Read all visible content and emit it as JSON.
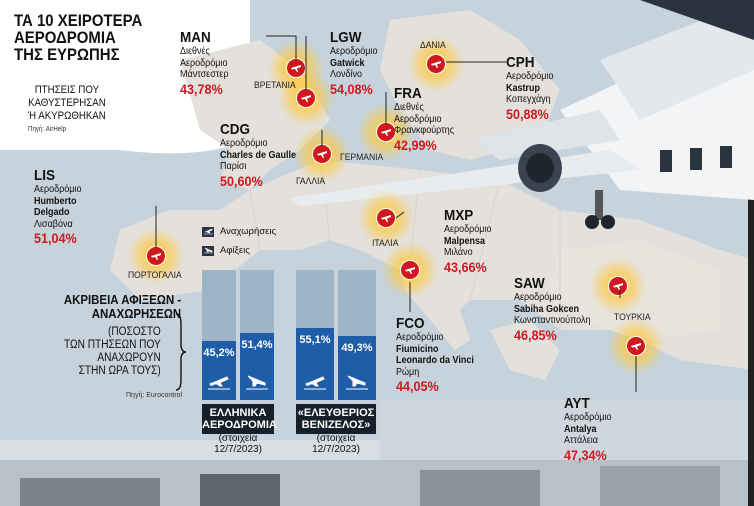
{
  "headline": {
    "lines": [
      "ΤΑ 10 ΧΕΙΡΟΤΕΡΑ",
      "ΑΕΡΟΔΡΟΜΙΑ",
      "ΤΗΣ ΕΥΡΩΠΗΣ"
    ]
  },
  "subtitle": {
    "lines": [
      "ΠΤΗΣΕΙΣ ΠΟΥ",
      "ΚΑΘΥΣΤΕΡΗΣΑΝ",
      "Ή ΑΚΥΡΩΘΗΚΑΝ"
    ],
    "source": "Πηγή: AirHelp"
  },
  "airports": [
    {
      "code": "MAN",
      "l1": "Διεθνές",
      "l2": "Αεροδρόμιο",
      "l3": "Μάντσεστερ",
      "pct": "43,78%"
    },
    {
      "code": "LGW",
      "l1": "Αεροδρόμιο",
      "l2": "Gatwick",
      "l3": "Λονδίνο",
      "pct": "54,08%"
    },
    {
      "code": "CPH",
      "l1": "Αεροδρόμιο",
      "l2": "Kastrup",
      "l3": "Κοπεγχάγη",
      "pct": "50,88%"
    },
    {
      "code": "FRA",
      "l1": "Διεθνές",
      "l2": "Αεροδρόμιο",
      "l3": "Φρανκφούρτης",
      "pct": "42,99%"
    },
    {
      "code": "CDG",
      "l1": "Αεροδρόμιο",
      "l2": "Charles de Gaulle",
      "l3": "Παρίσι",
      "pct": "50,60%"
    },
    {
      "code": "LIS",
      "l1": "Αεροδρόμιο",
      "l2": "Humberto",
      "l3": "Delgado",
      "l4": "Λισαβόνα",
      "pct": "51,04%"
    },
    {
      "code": "MXP",
      "l1": "Αεροδρόμιο",
      "l2": "Malpensa",
      "l3": "Μιλάνο",
      "pct": "43,66%"
    },
    {
      "code": "FCO",
      "l1": "Αεροδρόμιο",
      "l2": "Fiumicino",
      "l3": "Leonardo da Vinci",
      "l4": "Ρώμη",
      "pct": "44,05%"
    },
    {
      "code": "SAW",
      "l1": "Αεροδρόμιο",
      "l2": "Sabiha Gokcen",
      "l3": "Κωνσταντινούπολη",
      "pct": "46,85%"
    },
    {
      "code": "AYT",
      "l1": "Αεροδρόμιο",
      "l2": "Antalya",
      "l3": "Αττάλεια",
      "pct": "47,34%"
    }
  ],
  "countries": {
    "uk": "ΒΡΕΤΑΝΙΑ",
    "dk": "ΔΑΝΙΑ",
    "de": "ΓΕΡΜΑΝΙΑ",
    "fr": "ΓΑΛΛΙΑ",
    "pt": "ΠΟΡΤΟΓΑΛΙΑ",
    "it": "ΙΤΑΛΙΑ",
    "tr": "ΤΟΥΡΚΙΑ"
  },
  "legend": {
    "departures": "Αναχωρήσεις",
    "arrivals": "Αφίξεις"
  },
  "accuracy": {
    "title": [
      "ΑΚΡΙΒΕΙΑ ΑΦΙΞΕΩΝ -",
      "ΑΝΑΧΩΡΗΣΕΩΝ"
    ],
    "sub": [
      "(ΠΟΣΟΣΤΟ",
      "ΤΩΝ ΠΤΗΣΕΩΝ ΠΟΥ",
      "ΑΝΑΧΩΡΟΥΝ",
      "ΣΤΗΝ ΩΡΑ ΤΟΥΣ)"
    ],
    "source": "Πηγή: Eurocontrol",
    "groups": [
      {
        "tag": [
          "ΕΛΛΗΝΙΚΑ",
          "ΑΕΡΟΔΡΟΜΙΑ"
        ],
        "sub": [
          "(στοιχεία",
          "12/7/2023)"
        ],
        "dep_label": "45,2%",
        "arr_label": "51,4%",
        "dep": 45.2,
        "arr": 51.4
      },
      {
        "tag": [
          "«ΕΛΕΥΘΕΡΙΟΣ",
          "ΒΕΝΙΖΕΛΟΣ»"
        ],
        "sub": [
          "(στοιχεία",
          "12/7/2023)"
        ],
        "dep_label": "55,1%",
        "arr_label": "49,3%",
        "dep": 55.1,
        "arr": 49.3
      }
    ]
  },
  "colors": {
    "red": "#d0181f",
    "sea": "#c6d3dc",
    "land": "#e4e1dc",
    "bar_bg": "#9eb5c6",
    "bar_fill": "#1f5da8",
    "glow": "#ffcc33"
  },
  "icons": [
    "plane-pin-icon",
    "departures-icon",
    "arrivals-icon",
    "airplane-image"
  ]
}
